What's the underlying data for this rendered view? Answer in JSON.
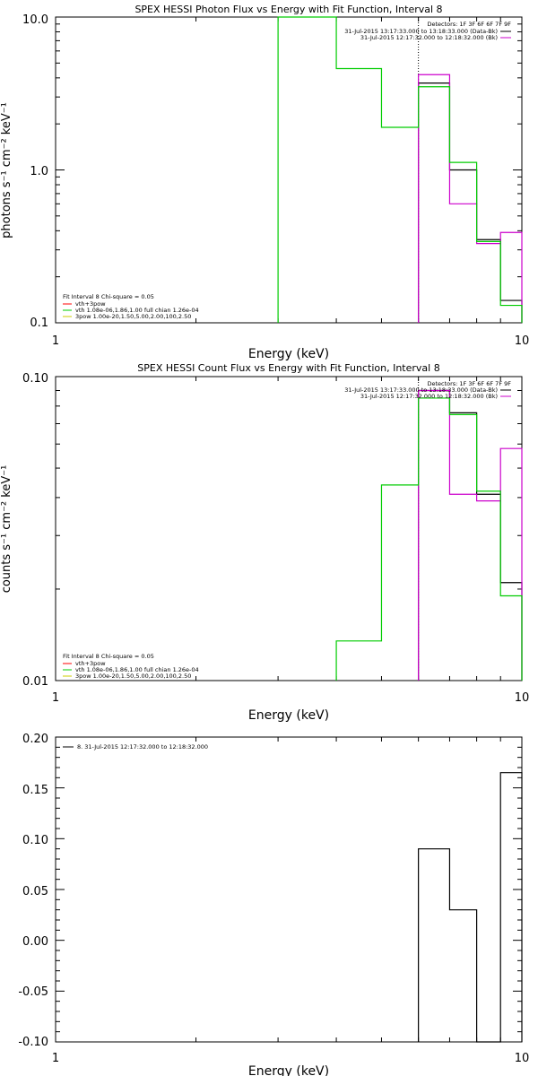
{
  "chart_data": [
    {
      "type": "line",
      "title": "SPEX HESSI Photon Flux vs Energy with Fit Function, Interval 8",
      "xlabel": "Energy (keV)",
      "ylabel": "photons s⁻¹ cm⁻² keV⁻¹",
      "xscale": "log",
      "yscale": "log",
      "xlim": [
        1,
        10
      ],
      "ylim": [
        0.1,
        10
      ],
      "xtick_labels": [
        "1",
        "10"
      ],
      "ytick_labels": [
        "0.1",
        "1.0",
        "10.0"
      ],
      "legend_top": {
        "header": "Detectors: 1F 3F 6F 6F 7F 9F",
        "entries": [
          {
            "text": "31-Jul-2015 13:17:33.000 to 13:18:33.000 (Data-Bk)",
            "color": "#000000"
          },
          {
            "text": "31-Jul-2015 12:17:32.000 to 12:18:32.000 (Bk)",
            "color": "#cc00cc"
          }
        ]
      },
      "legend_fit": {
        "header": "Fit Interval 8   Chi-square = 0.05",
        "entries": [
          {
            "text": "vth+3pow",
            "color": "#ff0000"
          },
          {
            "text": "vth 1.08e-06,1.86,1.00  full chian 1.26e-04",
            "color": "#00cc00"
          },
          {
            "text": "3pow 1.00e-20,1.50,5.00,2.00,100,2.50",
            "color": "#cccc00"
          }
        ]
      },
      "vline_x": 6.0,
      "series": [
        {
          "color": "#000000",
          "bin_edges": [
            6.0,
            7.0,
            8.0,
            9.0,
            10.0
          ],
          "values": [
            3.7,
            1.0,
            0.35,
            0.14
          ]
        },
        {
          "color": "#cc00cc",
          "bin_edges": [
            6.0,
            7.0,
            8.0,
            9.0,
            10.0
          ],
          "values": [
            4.2,
            0.6,
            0.33,
            0.39
          ]
        },
        {
          "color": "#00cc00",
          "bin_edges": [
            3.0,
            4.0,
            5.0,
            6.0,
            7.0,
            8.0,
            9.0,
            10.0
          ],
          "values": [
            10.0,
            4.6,
            1.9,
            3.5,
            1.12,
            0.34,
            0.13
          ]
        }
      ]
    },
    {
      "type": "line",
      "title": "SPEX HESSI Count Flux vs Energy with Fit Function, Interval 8",
      "xlabel": "Energy (keV)",
      "ylabel": "counts s⁻¹ cm⁻² keV⁻¹",
      "xscale": "log",
      "yscale": "log",
      "xlim": [
        1,
        10
      ],
      "ylim": [
        0.01,
        0.1
      ],
      "xtick_labels": [
        "1",
        "10"
      ],
      "ytick_labels": [
        "0.01",
        "0.10"
      ],
      "legend_top": {
        "header": "Detectors: 1F 3F 6F 6F 7F 9F",
        "entries": [
          {
            "text": "31-Jul-2015 13:17:33.000 to 13:18:33.000 (Data-Bk)",
            "color": "#000000"
          },
          {
            "text": "31-Jul-2015 12:17:32.000 to 12:18:32.000 (Bk)",
            "color": "#cc00cc"
          }
        ]
      },
      "legend_fit": {
        "header": "Fit Interval 8   Chi-square = 0.05",
        "entries": [
          {
            "text": "vth+3pow",
            "color": "#ff0000"
          },
          {
            "text": "vth 1.08e-06,1.86,1.00  full chian 1.26e-04",
            "color": "#00cc00"
          },
          {
            "text": "3pow 1.00e-20,1.50,5.00,2.00,100,2.50",
            "color": "#cccc00"
          }
        ]
      },
      "vline_x": 6.0,
      "series": [
        {
          "color": "#000000",
          "bin_edges": [
            6.0,
            7.0,
            8.0,
            9.0,
            10.0
          ],
          "values": [
            0.09,
            0.076,
            0.041,
            0.021
          ]
        },
        {
          "color": "#cc00cc",
          "bin_edges": [
            6.0,
            7.0,
            8.0,
            9.0,
            10.0
          ],
          "values": [
            0.09,
            0.041,
            0.039,
            0.058
          ]
        },
        {
          "color": "#00cc00",
          "bin_edges": [
            4.0,
            5.0,
            6.0,
            7.0,
            8.0,
            9.0,
            10.0
          ],
          "values": [
            0.0135,
            0.044,
            0.085,
            0.075,
            0.042,
            0.019
          ]
        }
      ]
    },
    {
      "type": "line",
      "title": "",
      "xlabel": "Energy (keV)",
      "ylabel": "",
      "xscale": "log",
      "yscale": "linear",
      "xlim": [
        1,
        10
      ],
      "ylim": [
        -0.1,
        0.2
      ],
      "xtick_labels": [
        "1",
        "10"
      ],
      "ytick_labels": [
        "-0.10",
        "-0.05",
        "0.00",
        "0.05",
        "0.10",
        "0.15",
        "0.20"
      ],
      "legend_top": {
        "header": "",
        "entries": [
          {
            "text": "8. 31-Jul-2015 12:17:32.000 to 12:18:32.000",
            "color": "#000000"
          }
        ]
      },
      "series": [
        {
          "color": "#000000",
          "bin_edges": [
            6.0,
            7.0,
            8.0,
            9.0,
            10.0
          ],
          "values": [
            0.09,
            0.03,
            -0.1,
            0.165
          ]
        }
      ]
    }
  ]
}
